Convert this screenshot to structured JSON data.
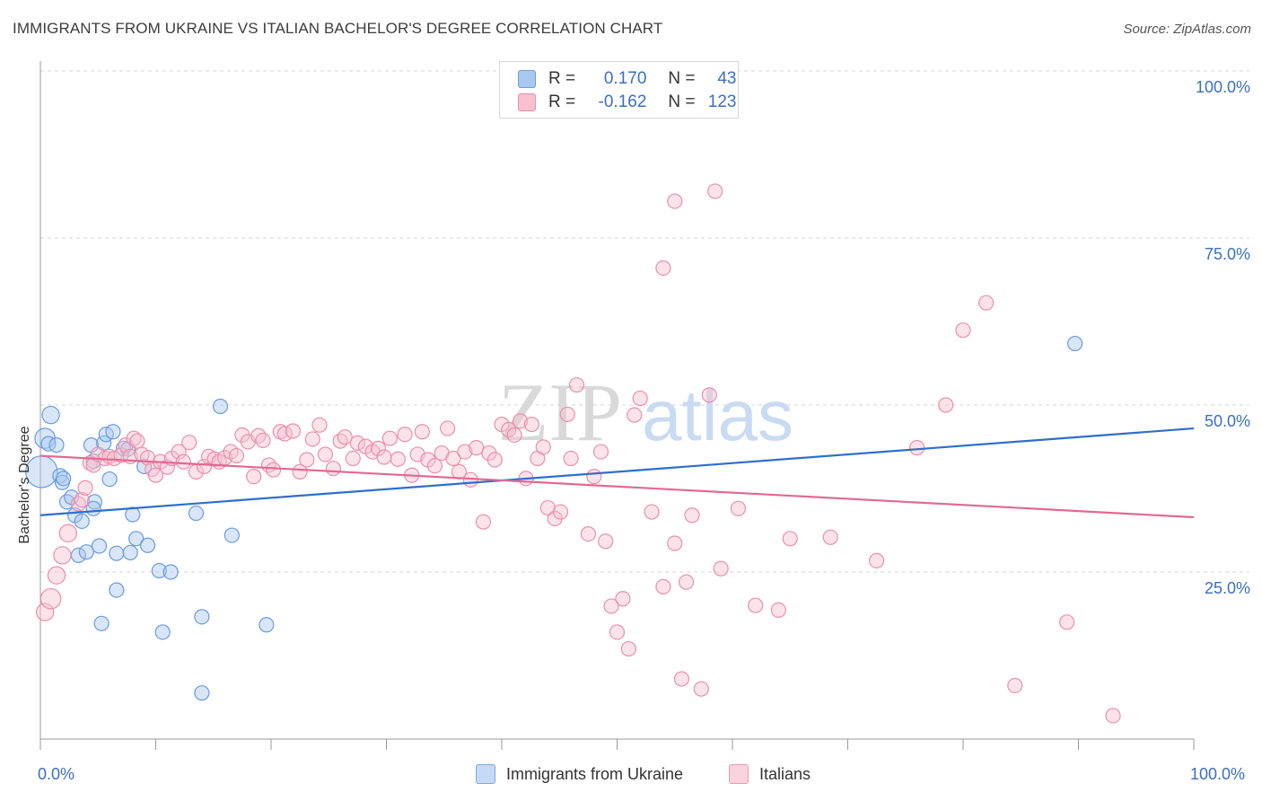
{
  "title": "IMMIGRANTS FROM UKRAINE VS ITALIAN BACHELOR'S DEGREE CORRELATION CHART",
  "source": "Source: ZipAtlas.com",
  "watermark": {
    "zip": "ZIP",
    "atlas": "atlas"
  },
  "legend_top": {
    "rows": [
      {
        "r_label": "R =",
        "r_value": "0.170",
        "n_label": "N =",
        "n_value": "43",
        "color": "#a9c8f0",
        "border": "#6e9ed8"
      },
      {
        "r_label": "R =",
        "r_value": "-0.162",
        "n_label": "N =",
        "n_value": "123",
        "color": "#f8c0d0",
        "border": "#e890ab"
      }
    ]
  },
  "legend_bottom": [
    {
      "label": "Immigrants from Ukraine",
      "color": "#c5daf5",
      "border": "#7ea8dd"
    },
    {
      "label": "Italians",
      "color": "#fbd3de",
      "border": "#e99ab2"
    }
  ],
  "axes": {
    "ylabel": "Bachelor's Degree",
    "x_min_label": "0.0%",
    "x_max_label": "100.0%",
    "y_tick_labels": [
      "100.0%",
      "75.0%",
      "50.0%",
      "25.0%"
    ]
  },
  "chart_data": {
    "type": "scatter",
    "xlim": [
      0,
      100
    ],
    "ylim": [
      0,
      100
    ],
    "y_ticks": [
      25,
      50,
      75,
      100
    ],
    "grid": "horizontal dashed",
    "legend_placement": "top-center",
    "series": [
      {
        "name": "Immigrants from Ukraine",
        "color": "#6a9be0",
        "fill": "#a9c8f0",
        "trend": {
          "x": [
            0,
            100
          ],
          "y": [
            33.5,
            46.5
          ],
          "color": "#2e6fcc"
        },
        "points": [
          [
            0.1,
            40.0,
            22
          ],
          [
            0.4,
            45.0,
            14
          ],
          [
            0.9,
            48.5,
            12
          ],
          [
            0.7,
            44.2,
            10
          ],
          [
            1.4,
            44.0,
            10
          ],
          [
            1.7,
            39.4,
            10
          ],
          [
            1.9,
            38.4,
            10
          ],
          [
            2.3,
            35.5,
            10
          ],
          [
            2.7,
            36.2,
            10
          ],
          [
            3.0,
            33.5,
            10
          ],
          [
            3.3,
            27.5,
            10
          ],
          [
            3.6,
            32.6,
            10
          ],
          [
            4.0,
            28.0,
            10
          ],
          [
            4.4,
            44.0,
            10
          ],
          [
            4.7,
            35.5,
            10
          ],
          [
            4.6,
            41.6,
            10
          ],
          [
            4.6,
            34.5,
            10
          ],
          [
            5.1,
            28.9,
            10
          ],
          [
            5.3,
            17.3,
            10
          ],
          [
            5.5,
            44.3,
            10
          ],
          [
            5.7,
            45.6,
            10
          ],
          [
            6.0,
            38.9,
            10
          ],
          [
            6.3,
            46.0,
            10
          ],
          [
            6.6,
            27.8,
            10
          ],
          [
            6.6,
            22.3,
            10
          ],
          [
            7.2,
            43.5,
            10
          ],
          [
            7.8,
            27.9,
            10
          ],
          [
            8.0,
            33.6,
            10
          ],
          [
            8.3,
            30.0,
            10
          ],
          [
            9.0,
            40.8,
            10
          ],
          [
            9.3,
            29.0,
            10
          ],
          [
            10.3,
            25.2,
            10
          ],
          [
            10.6,
            16.0,
            10
          ],
          [
            11.3,
            25.0,
            10
          ],
          [
            13.5,
            33.8,
            10
          ],
          [
            14.0,
            18.3,
            10
          ],
          [
            14.0,
            6.9,
            10
          ],
          [
            15.6,
            49.8,
            10
          ],
          [
            16.6,
            30.5,
            10
          ],
          [
            19.6,
            17.1,
            10
          ],
          [
            89.7,
            59.2,
            10
          ],
          [
            2.0,
            39.0,
            10
          ],
          [
            7.6,
            43.4,
            10
          ]
        ]
      },
      {
        "name": "Italians",
        "color": "#e890ab",
        "fill": "#f8c0d0",
        "trend": {
          "x": [
            0,
            100
          ],
          "y": [
            42.4,
            33.2
          ],
          "color": "#e06a93"
        },
        "points": [
          [
            0.4,
            19.0,
            12
          ],
          [
            0.9,
            21.0,
            14
          ],
          [
            1.4,
            24.5,
            12
          ],
          [
            1.9,
            27.5,
            12
          ],
          [
            2.4,
            30.8,
            12
          ],
          [
            3.3,
            35.2,
            10
          ],
          [
            3.6,
            35.8,
            10
          ],
          [
            3.9,
            37.6,
            10
          ],
          [
            4.3,
            41.3,
            10
          ],
          [
            4.6,
            41.0,
            10
          ],
          [
            5.0,
            42.6,
            10
          ],
          [
            5.6,
            42.0,
            10
          ],
          [
            6.0,
            42.3,
            10
          ],
          [
            6.4,
            42.0,
            10
          ],
          [
            7.0,
            42.5,
            10
          ],
          [
            7.4,
            44.0,
            10
          ],
          [
            7.8,
            42.3,
            10
          ],
          [
            8.1,
            45.0,
            10
          ],
          [
            8.4,
            44.6,
            10
          ],
          [
            8.8,
            42.6,
            10
          ],
          [
            9.3,
            42.1,
            10
          ],
          [
            9.7,
            40.4,
            10
          ],
          [
            10.0,
            39.5,
            10
          ],
          [
            10.4,
            41.5,
            10
          ],
          [
            11.0,
            40.7,
            10
          ],
          [
            11.4,
            42.0,
            10
          ],
          [
            12.0,
            43.0,
            10
          ],
          [
            12.4,
            41.5,
            10
          ],
          [
            12.9,
            44.4,
            10
          ],
          [
            13.5,
            40.0,
            10
          ],
          [
            14.2,
            40.8,
            10
          ],
          [
            14.6,
            42.3,
            10
          ],
          [
            15.1,
            41.9,
            10
          ],
          [
            15.5,
            41.5,
            10
          ],
          [
            16.0,
            42.1,
            10
          ],
          [
            16.5,
            43.0,
            10
          ],
          [
            17.0,
            42.4,
            10
          ],
          [
            17.5,
            45.5,
            10
          ],
          [
            18.0,
            44.5,
            10
          ],
          [
            18.5,
            39.3,
            10
          ],
          [
            18.9,
            45.4,
            10
          ],
          [
            19.3,
            44.7,
            10
          ],
          [
            19.8,
            41.0,
            10
          ],
          [
            20.2,
            40.3,
            10
          ],
          [
            20.8,
            46.0,
            10
          ],
          [
            21.2,
            45.7,
            10
          ],
          [
            21.9,
            46.1,
            10
          ],
          [
            22.5,
            40.0,
            10
          ],
          [
            23.1,
            41.8,
            10
          ],
          [
            23.6,
            44.9,
            10
          ],
          [
            24.2,
            47.0,
            10
          ],
          [
            24.7,
            42.6,
            10
          ],
          [
            25.4,
            40.5,
            10
          ],
          [
            26.0,
            44.6,
            10
          ],
          [
            26.4,
            45.2,
            10
          ],
          [
            27.1,
            42.0,
            10
          ],
          [
            27.5,
            44.3,
            10
          ],
          [
            28.2,
            43.8,
            10
          ],
          [
            28.8,
            43.0,
            10
          ],
          [
            29.3,
            43.5,
            10
          ],
          [
            29.8,
            42.2,
            10
          ],
          [
            30.3,
            45.0,
            10
          ],
          [
            31.0,
            41.9,
            10
          ],
          [
            31.6,
            45.6,
            10
          ],
          [
            32.2,
            39.5,
            10
          ],
          [
            32.7,
            42.6,
            10
          ],
          [
            33.1,
            46.0,
            10
          ],
          [
            33.6,
            41.8,
            10
          ],
          [
            34.2,
            40.9,
            10
          ],
          [
            34.8,
            42.8,
            10
          ],
          [
            35.3,
            46.5,
            10
          ],
          [
            35.8,
            42.0,
            10
          ],
          [
            36.3,
            40.0,
            10
          ],
          [
            36.8,
            43.0,
            10
          ],
          [
            37.3,
            38.8,
            10
          ],
          [
            37.8,
            43.6,
            10
          ],
          [
            38.4,
            32.5,
            10
          ],
          [
            38.9,
            42.8,
            10
          ],
          [
            39.4,
            41.8,
            10
          ],
          [
            40.0,
            47.1,
            10
          ],
          [
            40.6,
            46.3,
            10
          ],
          [
            41.1,
            45.5,
            10
          ],
          [
            41.6,
            47.6,
            10
          ],
          [
            42.1,
            39.0,
            10
          ],
          [
            42.6,
            47.1,
            10
          ],
          [
            43.1,
            42.0,
            10
          ],
          [
            43.6,
            43.7,
            10
          ],
          [
            44.0,
            34.6,
            10
          ],
          [
            44.6,
            33.0,
            10
          ],
          [
            45.1,
            34.0,
            10
          ],
          [
            45.7,
            48.6,
            10
          ],
          [
            46.0,
            42.0,
            10
          ],
          [
            46.5,
            53.0,
            10
          ],
          [
            47.5,
            30.7,
            10
          ],
          [
            48.0,
            39.3,
            10
          ],
          [
            48.6,
            43.0,
            10
          ],
          [
            49.0,
            29.6,
            10
          ],
          [
            49.5,
            19.9,
            10
          ],
          [
            50.0,
            16.0,
            10
          ],
          [
            50.5,
            21.0,
            10
          ],
          [
            51.0,
            13.5,
            10
          ],
          [
            51.5,
            48.5,
            10
          ],
          [
            52.0,
            51.0,
            10
          ],
          [
            53.0,
            34.0,
            10
          ],
          [
            54.0,
            22.8,
            10
          ],
          [
            55.0,
            29.3,
            10
          ],
          [
            55.6,
            9.0,
            10
          ],
          [
            56.0,
            23.5,
            10
          ],
          [
            56.5,
            33.5,
            10
          ],
          [
            57.3,
            7.5,
            10
          ],
          [
            58.0,
            51.5,
            10
          ],
          [
            59.0,
            25.5,
            10
          ],
          [
            60.5,
            34.5,
            10
          ],
          [
            62.0,
            20.0,
            10
          ],
          [
            64.0,
            19.3,
            10
          ],
          [
            65.0,
            30.0,
            10
          ],
          [
            68.5,
            30.2,
            10
          ],
          [
            72.5,
            26.7,
            10
          ],
          [
            76.0,
            43.6,
            10
          ],
          [
            78.5,
            50.0,
            10
          ],
          [
            80.0,
            61.2,
            10
          ],
          [
            82.0,
            65.3,
            10
          ],
          [
            84.5,
            8.0,
            10
          ],
          [
            89.0,
            17.5,
            10
          ],
          [
            93.0,
            3.5,
            10
          ],
          [
            54.0,
            70.5,
            10
          ],
          [
            55.0,
            80.5,
            10
          ],
          [
            58.5,
            82.0,
            10
          ]
        ]
      }
    ]
  }
}
